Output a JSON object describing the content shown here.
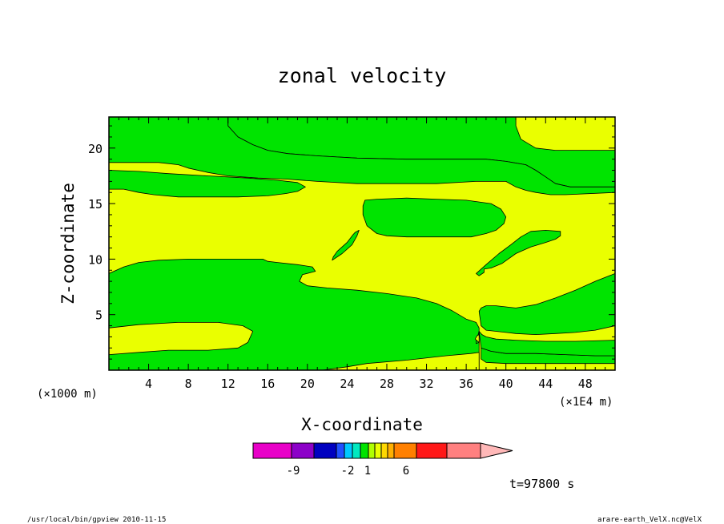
{
  "chart_data": {
    "type": "heatmap",
    "title": "zonal velocity",
    "xlabel": "X-coordinate",
    "ylabel": "Z-coordinate",
    "x_unit_left": "(×1000 m)",
    "x_unit_right": "(×1E4 m)",
    "xlim": [
      0,
      51
    ],
    "ylim": [
      0,
      22.8
    ],
    "x_ticks": [
      4,
      8,
      12,
      16,
      20,
      24,
      28,
      32,
      36,
      40,
      44,
      48
    ],
    "y_ticks": [
      5,
      10,
      15,
      20
    ],
    "colors": {
      "positive": "#eaff00",
      "negative": "#00e400",
      "frame": "#000000"
    },
    "colorbar": {
      "colors": [
        "#e800c8",
        "#8c00c8",
        "#0000c0",
        "#2050ff",
        "#00c8ff",
        "#00e8c0",
        "#00e400",
        "#b0ff00",
        "#eaff00",
        "#ffd800",
        "#ffb000",
        "#ff8000",
        "#ff1818",
        "#ff8080",
        "#ffb8b8"
      ],
      "labels": [
        {
          "value": "-9",
          "pos": 2
        },
        {
          "value": "-2",
          "pos": 5
        },
        {
          "value": "1",
          "pos": 8
        },
        {
          "value": "6",
          "pos": 11
        }
      ]
    },
    "time_label": "t=97800 s",
    "negative_regions": [
      [
        [
          12,
          22.8
        ],
        [
          12,
          22
        ],
        [
          13,
          21
        ],
        [
          14.5,
          20.3
        ],
        [
          16,
          19.8
        ],
        [
          18,
          19.5
        ],
        [
          21,
          19.3
        ],
        [
          25,
          19.1
        ],
        [
          30,
          19
        ],
        [
          35,
          19
        ],
        [
          38,
          19
        ],
        [
          40,
          18.8
        ],
        [
          42,
          18.5
        ],
        [
          43,
          18
        ],
        [
          44,
          17.4
        ],
        [
          45,
          16.8
        ],
        [
          46.5,
          16.5
        ],
        [
          48,
          16.5
        ],
        [
          51,
          16.5
        ],
        [
          51,
          19.8
        ],
        [
          49,
          19.8
        ],
        [
          45,
          19.8
        ],
        [
          43,
          20
        ],
        [
          41.5,
          20.8
        ],
        [
          41,
          22
        ],
        [
          41,
          22.8
        ]
      ],
      [
        [
          0,
          18.7
        ],
        [
          5,
          18.7
        ],
        [
          7,
          18.5
        ],
        [
          8,
          18.2
        ],
        [
          10,
          17.8
        ],
        [
          12,
          17.5
        ],
        [
          15,
          17.3
        ],
        [
          18,
          17.2
        ],
        [
          21,
          17
        ],
        [
          25,
          16.8
        ],
        [
          30,
          16.8
        ],
        [
          33,
          16.8
        ],
        [
          37,
          17
        ],
        [
          39,
          17
        ],
        [
          40,
          17
        ],
        [
          41,
          16.5
        ],
        [
          42,
          16.2
        ],
        [
          43,
          16
        ],
        [
          44.5,
          15.8
        ],
        [
          46,
          15.8
        ],
        [
          51,
          16
        ],
        [
          51,
          16.5
        ],
        [
          48,
          16.5
        ],
        [
          46.5,
          16.5
        ],
        [
          45,
          16.8
        ],
        [
          44,
          17.4
        ],
        [
          43,
          18
        ],
        [
          42,
          18.5
        ],
        [
          40,
          18.8
        ],
        [
          38,
          19
        ],
        [
          35,
          19
        ],
        [
          30,
          19
        ],
        [
          25,
          19.1
        ],
        [
          21,
          19.3
        ],
        [
          18,
          19.5
        ],
        [
          16,
          19.8
        ],
        [
          14.5,
          20.3
        ],
        [
          13,
          21
        ],
        [
          12,
          22
        ],
        [
          12,
          22.8
        ],
        [
          0,
          22.8
        ]
      ],
      [
        [
          0,
          16.3
        ],
        [
          1.5,
          16.3
        ],
        [
          3,
          16
        ],
        [
          4.5,
          15.8
        ],
        [
          7,
          15.6
        ],
        [
          10,
          15.6
        ],
        [
          13,
          15.6
        ],
        [
          16,
          15.7
        ],
        [
          17.8,
          15.9
        ],
        [
          19,
          16.1
        ],
        [
          19.8,
          16.5
        ],
        [
          19,
          16.9
        ],
        [
          17,
          17.1
        ],
        [
          14,
          17.3
        ],
        [
          10,
          17.5
        ],
        [
          6,
          17.7
        ],
        [
          3,
          17.9
        ],
        [
          0,
          18
        ]
      ],
      [
        [
          25.8,
          15.3
        ],
        [
          27,
          15.4
        ],
        [
          30,
          15.5
        ],
        [
          33,
          15.4
        ],
        [
          36,
          15.3
        ],
        [
          38.5,
          15
        ],
        [
          39.5,
          14.5
        ],
        [
          40,
          13.8
        ],
        [
          39.8,
          13.2
        ],
        [
          39,
          12.6
        ],
        [
          38,
          12.3
        ],
        [
          36.5,
          12
        ],
        [
          35.8,
          12
        ],
        [
          35,
          12
        ],
        [
          33,
          12
        ],
        [
          30,
          12
        ],
        [
          28,
          12.1
        ],
        [
          27,
          12.3
        ],
        [
          26,
          13
        ],
        [
          25.6,
          14
        ],
        [
          25.6,
          14.8
        ]
      ],
      [
        [
          22.5,
          9.9
        ],
        [
          23.5,
          10.5
        ],
        [
          24.5,
          11.3
        ],
        [
          25,
          12.1
        ],
        [
          25.2,
          12.6
        ],
        [
          24.8,
          12.4
        ],
        [
          24.6,
          12.2
        ],
        [
          24,
          11.5
        ],
        [
          23,
          10.7
        ],
        [
          22.6,
          10.2
        ]
      ],
      [
        [
          0,
          8.7
        ],
        [
          1.5,
          9.3
        ],
        [
          3,
          9.7
        ],
        [
          5,
          9.9
        ],
        [
          8,
          10
        ],
        [
          11,
          10
        ],
        [
          14,
          10
        ],
        [
          15.5,
          10
        ],
        [
          16,
          9.8
        ],
        [
          17,
          9.7
        ],
        [
          19,
          9.5
        ],
        [
          20.5,
          9.3
        ],
        [
          20.8,
          8.9
        ],
        [
          19.5,
          8.6
        ],
        [
          19.2,
          8
        ],
        [
          20,
          7.6
        ],
        [
          22,
          7.4
        ],
        [
          25,
          7.2
        ],
        [
          28,
          6.9
        ],
        [
          31,
          6.5
        ],
        [
          33,
          6
        ],
        [
          34.5,
          5.4
        ],
        [
          36,
          4.6
        ],
        [
          37,
          4.3
        ],
        [
          37.3,
          3.8
        ],
        [
          37.3,
          0
        ],
        [
          0,
          0
        ],
        [
          0,
          1.4
        ],
        [
          3,
          1.6
        ],
        [
          6,
          1.8
        ],
        [
          10,
          1.8
        ],
        [
          13,
          2
        ],
        [
          14,
          2.5
        ],
        [
          14.5,
          3.5
        ],
        [
          13.5,
          4
        ],
        [
          11,
          4.3
        ],
        [
          7,
          4.3
        ],
        [
          3,
          4.1
        ],
        [
          0,
          3.8
        ]
      ],
      [
        [
          37.3,
          5.3
        ],
        [
          37.5,
          5.6
        ],
        [
          38,
          5.8
        ],
        [
          39,
          5.8
        ],
        [
          40,
          5.7
        ],
        [
          41,
          5.6
        ],
        [
          43,
          5.9
        ],
        [
          45,
          6.5
        ],
        [
          47,
          7.2
        ],
        [
          49,
          8
        ],
        [
          51,
          8.7
        ],
        [
          51,
          4
        ],
        [
          49,
          3.6
        ],
        [
          47,
          3.4
        ],
        [
          45,
          3.3
        ],
        [
          43,
          3.2
        ],
        [
          41,
          3.3
        ],
        [
          39,
          3.5
        ],
        [
          38,
          3.6
        ],
        [
          37.5,
          4
        ]
      ],
      [
        [
          37.5,
          2
        ],
        [
          38.5,
          1.7
        ],
        [
          40,
          1.5
        ],
        [
          43,
          1.5
        ],
        [
          46,
          1.4
        ],
        [
          49,
          1.3
        ],
        [
          51,
          1.3
        ],
        [
          51,
          0.6
        ],
        [
          48,
          0.6
        ],
        [
          44,
          0.6
        ],
        [
          40,
          0.6
        ],
        [
          38,
          0.7
        ],
        [
          37.5,
          1
        ]
      ],
      [
        [
          37.3,
          3.5
        ],
        [
          37.6,
          3.2
        ],
        [
          38,
          3
        ],
        [
          39,
          2.8
        ],
        [
          41,
          2.7
        ],
        [
          44,
          2.6
        ],
        [
          47,
          2.6
        ],
        [
          51,
          2.7
        ],
        [
          51,
          1.3
        ],
        [
          49,
          1.3
        ],
        [
          46,
          1.4
        ],
        [
          43,
          1.5
        ],
        [
          40,
          1.5
        ],
        [
          38.5,
          1.7
        ],
        [
          37.5,
          2
        ]
      ],
      [
        [
          37,
          2.8
        ],
        [
          37.2,
          3.2
        ],
        [
          37.3,
          3.5
        ],
        [
          37.3,
          2.5
        ],
        [
          37,
          2.4
        ]
      ],
      [
        [
          37,
          8.7
        ],
        [
          38,
          9.5
        ],
        [
          39.3,
          10.5
        ],
        [
          40.5,
          11.3
        ],
        [
          41.5,
          12
        ],
        [
          42.5,
          12.5
        ],
        [
          44,
          12.6
        ],
        [
          45.5,
          12.5
        ],
        [
          45.5,
          12.1
        ],
        [
          45,
          11.8
        ],
        [
          44,
          11.5
        ],
        [
          42.5,
          11.1
        ],
        [
          41,
          10.5
        ],
        [
          39.6,
          9.6
        ],
        [
          38.5,
          9.2
        ],
        [
          37.8,
          9.1
        ],
        [
          37.8,
          8.8
        ],
        [
          37.3,
          8.5
        ]
      ]
    ],
    "positive_islands": [
      [
        [
          21.5,
          0
        ],
        [
          24,
          0.3
        ],
        [
          26,
          0.6
        ],
        [
          30,
          0.9
        ],
        [
          34,
          1.3
        ],
        [
          36.5,
          1.5
        ],
        [
          37.3,
          1.6
        ],
        [
          37.3,
          0
        ]
      ],
      [
        [
          36.9,
          2.8
        ],
        [
          37.3,
          2.5
        ],
        [
          37.3,
          3.2
        ],
        [
          37.1,
          3.1
        ]
      ]
    ]
  },
  "footer": {
    "left": "/usr/local/bin/gpview   2010-11-15",
    "right": "arare-earth_VelX.nc@VelX"
  }
}
